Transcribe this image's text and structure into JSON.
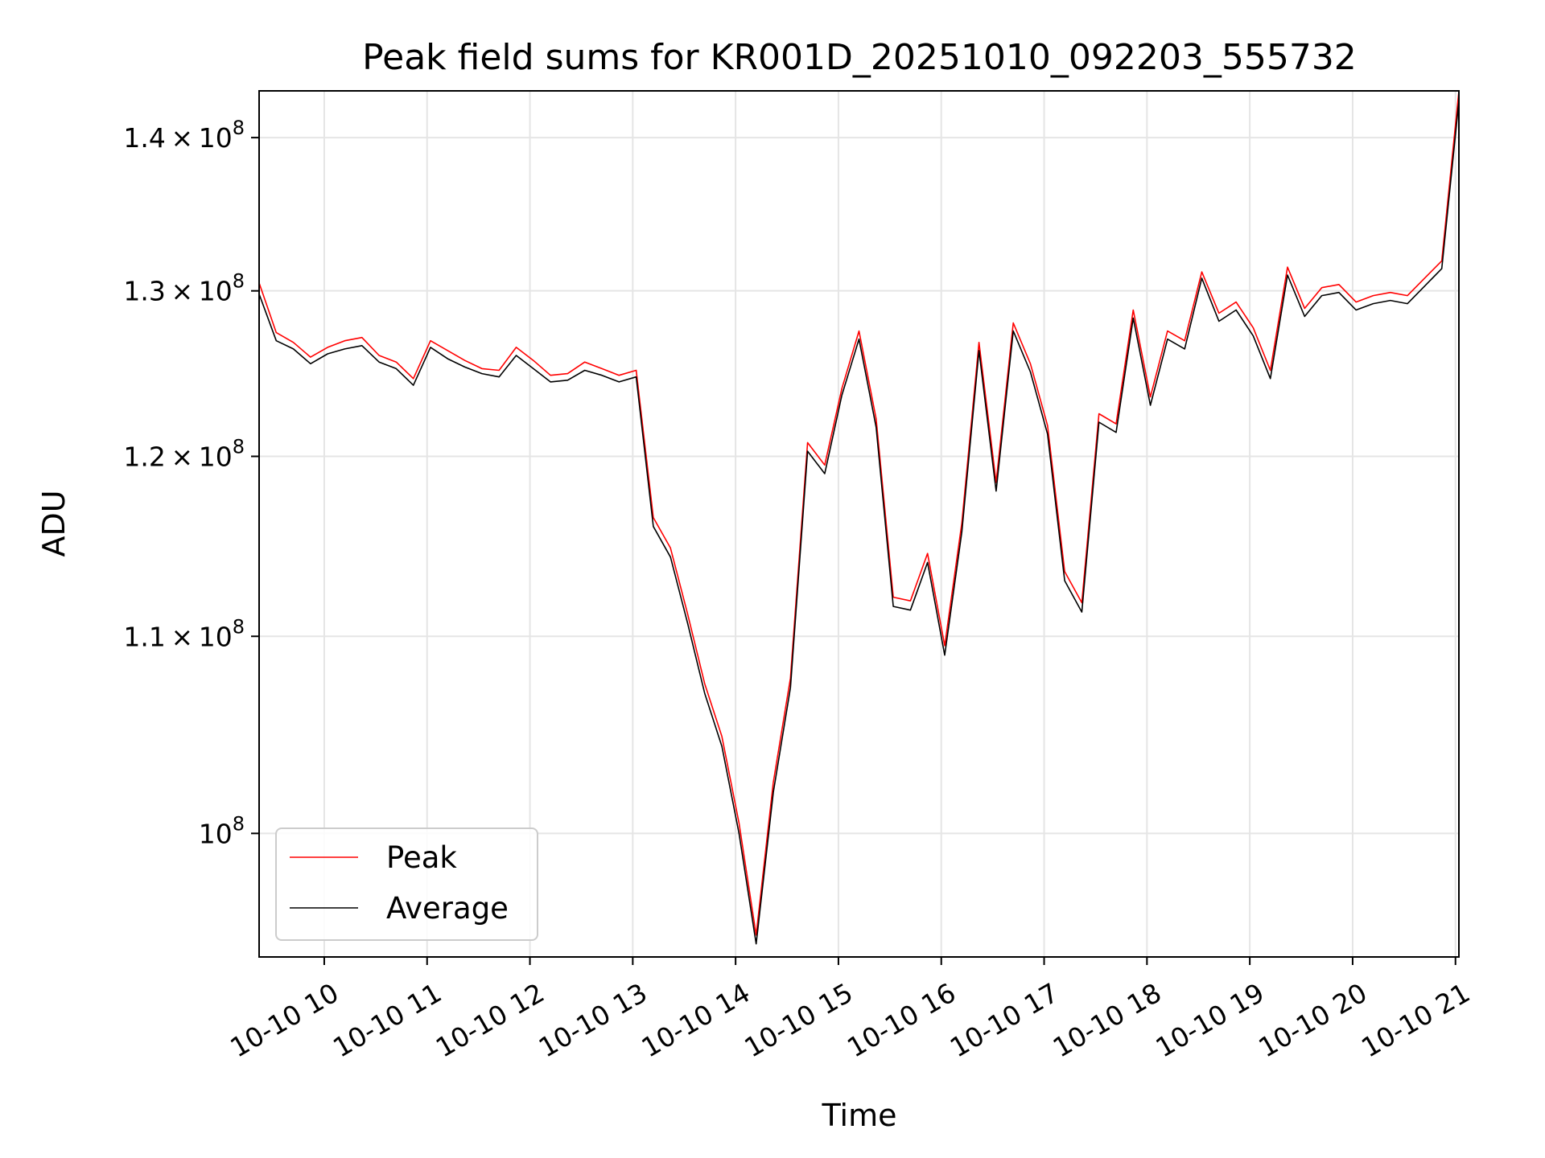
{
  "chart_data": {
    "type": "line",
    "title": "Peak field sums for KR001D_20251010_092203_555732",
    "xlabel": "Time",
    "ylabel": "ADU",
    "yscale": "log",
    "grid": true,
    "legend_position": "lower-left",
    "xlim": [
      "2025-10-10 09:22",
      "2025-10-10 21:02"
    ],
    "ylim": [
      94200000,
      143200000
    ],
    "x_ticks": [
      {
        "value": "2025-10-10 10:00",
        "label": "10-10 10"
      },
      {
        "value": "2025-10-10 11:00",
        "label": "10-10 11"
      },
      {
        "value": "2025-10-10 12:00",
        "label": "10-10 12"
      },
      {
        "value": "2025-10-10 13:00",
        "label": "10-10 13"
      },
      {
        "value": "2025-10-10 14:00",
        "label": "10-10 14"
      },
      {
        "value": "2025-10-10 15:00",
        "label": "10-10 15"
      },
      {
        "value": "2025-10-10 16:00",
        "label": "10-10 16"
      },
      {
        "value": "2025-10-10 17:00",
        "label": "10-10 17"
      },
      {
        "value": "2025-10-10 18:00",
        "label": "10-10 18"
      },
      {
        "value": "2025-10-10 19:00",
        "label": "10-10 19"
      },
      {
        "value": "2025-10-10 20:00",
        "label": "10-10 20"
      },
      {
        "value": "2025-10-10 21:00",
        "label": "10-10 21"
      }
    ],
    "y_ticks": [
      {
        "value": 100000000,
        "mantissa": "",
        "exponent": "8"
      },
      {
        "value": 110000000,
        "mantissa": "1.1",
        "exponent": "8"
      },
      {
        "value": 120000000,
        "mantissa": "1.2",
        "exponent": "8"
      },
      {
        "value": 130000000,
        "mantissa": "1.3",
        "exponent": "8"
      },
      {
        "value": 140000000,
        "mantissa": "1.4",
        "exponent": "8"
      }
    ],
    "series": [
      {
        "name": "Peak",
        "color": "#ff0000",
        "x": [
          "2025-10-10 09:22",
          "2025-10-10 09:32",
          "2025-10-10 09:42",
          "2025-10-10 09:52",
          "2025-10-10 10:02",
          "2025-10-10 10:12",
          "2025-10-10 10:22",
          "2025-10-10 10:32",
          "2025-10-10 10:42",
          "2025-10-10 10:52",
          "2025-10-10 11:02",
          "2025-10-10 11:12",
          "2025-10-10 11:22",
          "2025-10-10 11:32",
          "2025-10-10 11:42",
          "2025-10-10 11:52",
          "2025-10-10 12:02",
          "2025-10-10 12:12",
          "2025-10-10 12:22",
          "2025-10-10 12:32",
          "2025-10-10 12:42",
          "2025-10-10 12:52",
          "2025-10-10 13:02",
          "2025-10-10 13:12",
          "2025-10-10 13:22",
          "2025-10-10 13:32",
          "2025-10-10 13:42",
          "2025-10-10 13:52",
          "2025-10-10 14:02",
          "2025-10-10 14:12",
          "2025-10-10 14:22",
          "2025-10-10 14:32",
          "2025-10-10 14:42",
          "2025-10-10 14:52",
          "2025-10-10 15:02",
          "2025-10-10 15:12",
          "2025-10-10 15:22",
          "2025-10-10 15:32",
          "2025-10-10 15:42",
          "2025-10-10 15:52",
          "2025-10-10 16:02",
          "2025-10-10 16:12",
          "2025-10-10 16:22",
          "2025-10-10 16:32",
          "2025-10-10 16:42",
          "2025-10-10 16:52",
          "2025-10-10 17:02",
          "2025-10-10 17:12",
          "2025-10-10 17:22",
          "2025-10-10 17:32",
          "2025-10-10 17:42",
          "2025-10-10 17:52",
          "2025-10-10 18:02",
          "2025-10-10 18:12",
          "2025-10-10 18:22",
          "2025-10-10 18:32",
          "2025-10-10 18:42",
          "2025-10-10 18:52",
          "2025-10-10 19:02",
          "2025-10-10 19:12",
          "2025-10-10 19:22",
          "2025-10-10 19:32",
          "2025-10-10 19:42",
          "2025-10-10 19:52",
          "2025-10-10 20:02",
          "2025-10-10 20:12",
          "2025-10-10 20:22",
          "2025-10-10 20:32",
          "2025-10-10 20:42",
          "2025-10-10 20:52",
          "2025-10-10 21:02"
        ],
        "values": [
          130500000,
          127400000,
          126800000,
          125900000,
          126500000,
          126900000,
          127100000,
          126000000,
          125600000,
          124600000,
          126900000,
          126300000,
          125700000,
          125200000,
          125100000,
          126500000,
          125700000,
          124800000,
          124900000,
          125600000,
          125200000,
          124800000,
          125100000,
          116500000,
          114800000,
          111200000,
          107500000,
          104800000,
          100500000,
          95200000,
          102500000,
          107800000,
          120800000,
          119500000,
          124000000,
          127500000,
          122200000,
          112100000,
          111900000,
          114500000,
          109500000,
          116200000,
          126800000,
          118500000,
          128000000,
          125500000,
          121800000,
          113500000,
          111800000,
          122500000,
          121900000,
          128800000,
          123500000,
          127500000,
          126900000,
          131200000,
          128600000,
          129300000,
          127700000,
          125100000,
          131500000,
          128900000,
          130200000,
          130400000,
          129300000,
          129700000,
          129900000,
          129700000,
          130800000,
          131900000,
          143200000
        ]
      },
      {
        "name": "Average",
        "color": "#000000",
        "x": [
          "2025-10-10 09:22",
          "2025-10-10 09:32",
          "2025-10-10 09:42",
          "2025-10-10 09:52",
          "2025-10-10 10:02",
          "2025-10-10 10:12",
          "2025-10-10 10:22",
          "2025-10-10 10:32",
          "2025-10-10 10:42",
          "2025-10-10 10:52",
          "2025-10-10 11:02",
          "2025-10-10 11:12",
          "2025-10-10 11:22",
          "2025-10-10 11:32",
          "2025-10-10 11:42",
          "2025-10-10 11:52",
          "2025-10-10 12:02",
          "2025-10-10 12:12",
          "2025-10-10 12:22",
          "2025-10-10 12:32",
          "2025-10-10 12:42",
          "2025-10-10 12:52",
          "2025-10-10 13:02",
          "2025-10-10 13:12",
          "2025-10-10 13:22",
          "2025-10-10 13:32",
          "2025-10-10 13:42",
          "2025-10-10 13:52",
          "2025-10-10 14:02",
          "2025-10-10 14:12",
          "2025-10-10 14:22",
          "2025-10-10 14:32",
          "2025-10-10 14:42",
          "2025-10-10 14:52",
          "2025-10-10 15:02",
          "2025-10-10 15:12",
          "2025-10-10 15:22",
          "2025-10-10 15:32",
          "2025-10-10 15:42",
          "2025-10-10 15:52",
          "2025-10-10 16:02",
          "2025-10-10 16:12",
          "2025-10-10 16:22",
          "2025-10-10 16:32",
          "2025-10-10 16:42",
          "2025-10-10 16:52",
          "2025-10-10 17:02",
          "2025-10-10 17:12",
          "2025-10-10 17:22",
          "2025-10-10 17:32",
          "2025-10-10 17:42",
          "2025-10-10 17:52",
          "2025-10-10 18:02",
          "2025-10-10 18:12",
          "2025-10-10 18:22",
          "2025-10-10 18:32",
          "2025-10-10 18:42",
          "2025-10-10 18:52",
          "2025-10-10 19:02",
          "2025-10-10 19:12",
          "2025-10-10 19:22",
          "2025-10-10 19:32",
          "2025-10-10 19:42",
          "2025-10-10 19:52",
          "2025-10-10 20:02",
          "2025-10-10 20:12",
          "2025-10-10 20:22",
          "2025-10-10 20:32",
          "2025-10-10 20:42",
          "2025-10-10 20:52",
          "2025-10-10 21:02"
        ],
        "values": [
          129800000,
          126900000,
          126400000,
          125500000,
          126100000,
          126400000,
          126600000,
          125600000,
          125200000,
          124200000,
          126500000,
          125800000,
          125300000,
          124900000,
          124700000,
          126000000,
          125200000,
          124400000,
          124500000,
          125100000,
          124800000,
          124400000,
          124700000,
          116000000,
          114300000,
          110700000,
          107000000,
          104300000,
          100000000,
          94800000,
          102000000,
          107300000,
          120300000,
          119000000,
          123600000,
          127000000,
          121700000,
          111600000,
          111400000,
          114000000,
          109000000,
          115700000,
          126300000,
          118000000,
          127500000,
          125000000,
          121300000,
          113000000,
          111300000,
          122000000,
          121400000,
          128300000,
          123000000,
          127000000,
          126400000,
          130800000,
          128100000,
          128800000,
          127200000,
          124600000,
          131000000,
          128400000,
          129700000,
          129900000,
          128800000,
          129200000,
          129400000,
          129200000,
          130300000,
          131400000,
          142500000
        ]
      }
    ]
  }
}
